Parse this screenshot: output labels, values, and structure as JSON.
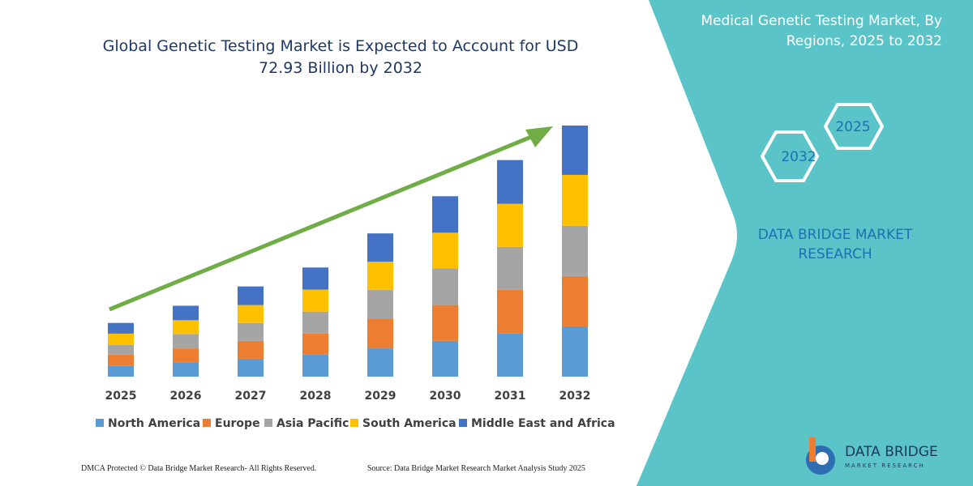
{
  "chart_data": {
    "type": "stacked-bar",
    "title": "Global Genetic Testing Market is Expected to Account for USD 72.93 Billion by 2032",
    "categories": [
      "2025",
      "2026",
      "2027",
      "2028",
      "2029",
      "2030",
      "2031",
      "2032"
    ],
    "series": [
      {
        "name": "North America",
        "color": "#5b9bd5",
        "values": [
          3.1,
          4.2,
          5.2,
          6.4,
          8.2,
          10.4,
          12.5,
          14.6
        ]
      },
      {
        "name": "Europe",
        "color": "#ed7d31",
        "values": [
          3.3,
          4.0,
          5.2,
          6.1,
          8.5,
          10.4,
          12.7,
          14.6
        ]
      },
      {
        "name": "Asia Pacific",
        "color": "#a5a5a5",
        "values": [
          2.8,
          4.2,
          5.2,
          6.4,
          8.5,
          10.6,
          12.5,
          14.6
        ]
      },
      {
        "name": "South America",
        "color": "#ffc000",
        "values": [
          3.3,
          4.0,
          5.2,
          6.4,
          8.2,
          10.4,
          12.5,
          14.8
        ]
      },
      {
        "name": "Middle East and Africa",
        "color": "#4472c4",
        "values": [
          3.1,
          4.2,
          5.4,
          6.4,
          8.2,
          10.6,
          12.7,
          14.33
        ]
      }
    ],
    "legend": "bottom"
  },
  "panel": {
    "title": "Medical Genetic Testing Market, By Regions, 2025 to 2032",
    "hex_years": [
      "2025",
      "2032"
    ],
    "brand": "DATA BRIDGE MARKET RESEARCH"
  },
  "footer": {
    "left": "DMCA Protected © Data Bridge Market Research- All Rights Reserved.",
    "right": "Source: Data Bridge Market Research Market Analysis Study 2025"
  },
  "logo": {
    "name": "DATA BRIDGE",
    "tagline": "MARKET RESEARCH"
  }
}
